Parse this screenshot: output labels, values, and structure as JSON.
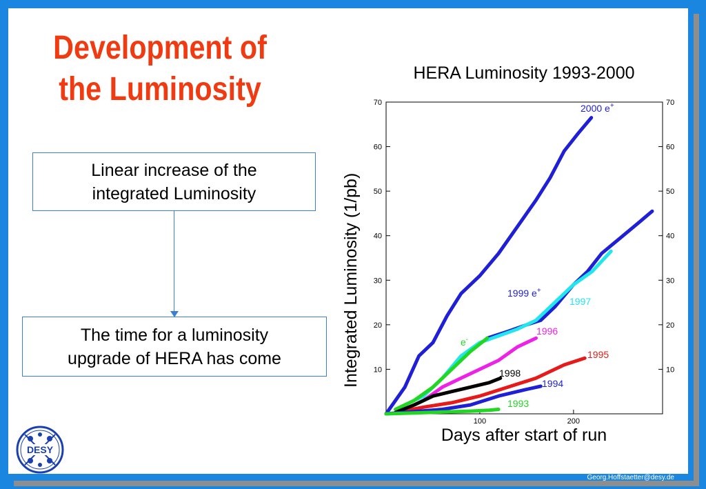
{
  "slide": {
    "title_line1": "Development of",
    "title_line2": "the Luminosity",
    "box1_line1": "Linear increase of the",
    "box1_line2": "integrated Luminosity",
    "box2_line1": "The time for a luminosity",
    "box2_line2": "upgrade of HERA has come",
    "footer": "Georg.Hoffstaetter@desy.de",
    "logo_text": "DESY"
  },
  "colors": {
    "accent": "#1a86e0",
    "title": "#f03a12"
  },
  "chart_data": {
    "type": "line",
    "title": "HERA Luminosity 1993-2000",
    "xlabel": "Days after start of run",
    "ylabel": "Integrated Luminosity (1/pb)",
    "xlim": [
      0,
      295
    ],
    "ylim": [
      0,
      70
    ],
    "x_ticks": [
      100,
      200
    ],
    "y_ticks": [
      10,
      20,
      30,
      40,
      50,
      60,
      70
    ],
    "series": [
      {
        "name": "2000 e",
        "superscript": "+",
        "color": "#1f1fd6",
        "points": [
          [
            0,
            0
          ],
          [
            20,
            6
          ],
          [
            35,
            13
          ],
          [
            50,
            16
          ],
          [
            65,
            22
          ],
          [
            80,
            27
          ],
          [
            100,
            31
          ],
          [
            120,
            36
          ],
          [
            140,
            42
          ],
          [
            160,
            48
          ],
          [
            175,
            53
          ],
          [
            190,
            59
          ],
          [
            205,
            63
          ],
          [
            219,
            66.5
          ]
        ]
      },
      {
        "name": "1999 e",
        "superscript": "+",
        "color": "#1f1fd6",
        "points": [
          [
            108,
            17
          ],
          [
            130,
            18.5
          ],
          [
            150,
            20
          ],
          [
            165,
            21
          ],
          [
            180,
            24
          ],
          [
            200,
            29
          ],
          [
            215,
            32
          ],
          [
            230,
            36
          ],
          [
            250,
            39.5
          ],
          [
            270,
            43
          ],
          [
            284,
            45.5
          ]
        ]
      },
      {
        "name": "1997",
        "color": "#22e6ee",
        "points": [
          [
            20,
            2
          ],
          [
            40,
            4
          ],
          [
            60,
            8
          ],
          [
            80,
            13
          ],
          [
            100,
            16
          ],
          [
            120,
            17.5
          ],
          [
            140,
            19
          ],
          [
            160,
            21
          ],
          [
            180,
            25
          ],
          [
            200,
            29
          ],
          [
            220,
            32
          ],
          [
            240,
            36.5
          ]
        ]
      },
      {
        "name": "e",
        "superscript": "-",
        "color": "#22d622",
        "points": [
          [
            10,
            1
          ],
          [
            30,
            3
          ],
          [
            50,
            6
          ],
          [
            70,
            10
          ],
          [
            90,
            14
          ],
          [
            108,
            17
          ]
        ]
      },
      {
        "name": "1996",
        "color": "#ee22e6",
        "points": [
          [
            20,
            1
          ],
          [
            40,
            3
          ],
          [
            60,
            6
          ],
          [
            80,
            8
          ],
          [
            100,
            10
          ],
          [
            120,
            12
          ],
          [
            140,
            15
          ],
          [
            160,
            17
          ]
        ]
      },
      {
        "name": "1995",
        "color": "#e61a1a",
        "points": [
          [
            15,
            0.5
          ],
          [
            40,
            1.5
          ],
          [
            70,
            2.5
          ],
          [
            100,
            4
          ],
          [
            130,
            6
          ],
          [
            160,
            8
          ],
          [
            190,
            11
          ],
          [
            212,
            12.5
          ]
        ]
      },
      {
        "name": "1998",
        "color": "#000000",
        "points": [
          [
            10,
            0.3
          ],
          [
            30,
            2
          ],
          [
            50,
            4
          ],
          [
            70,
            5
          ],
          [
            90,
            6
          ],
          [
            110,
            7
          ],
          [
            122,
            8
          ]
        ]
      },
      {
        "name": "1994",
        "color": "#1f1fd6",
        "points": [
          [
            0,
            0
          ],
          [
            30,
            0.5
          ],
          [
            60,
            1
          ],
          [
            90,
            2
          ],
          [
            120,
            4
          ],
          [
            150,
            5.5
          ],
          [
            165,
            6.2
          ]
        ]
      },
      {
        "name": "1993",
        "color": "#22d622",
        "points": [
          [
            0,
            0
          ],
          [
            30,
            0.2
          ],
          [
            60,
            0.4
          ],
          [
            90,
            0.6
          ],
          [
            110,
            0.8
          ],
          [
            120,
            1
          ]
        ]
      }
    ]
  }
}
